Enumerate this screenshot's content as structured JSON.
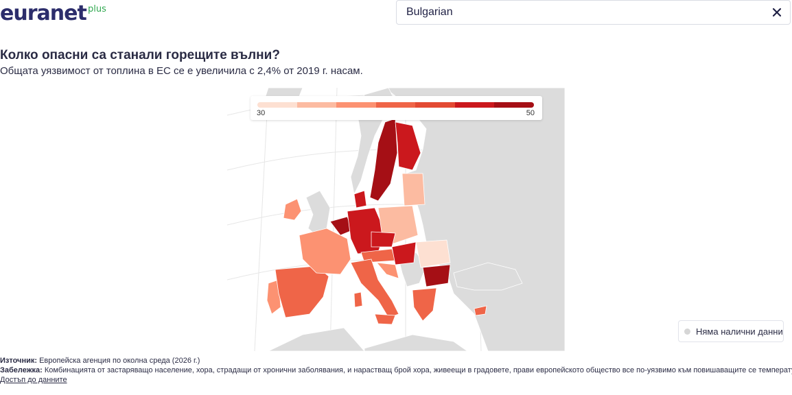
{
  "header": {
    "logo_text": "euranet",
    "logo_sup": "plus",
    "language_value": "Bulgarian"
  },
  "title": "Колко опасни са станали горещите вълни?",
  "subtitle": "Общата уязвимост от топлина в ЕС се е увеличила с 2,4% от 2019 г. насам.",
  "legend": {
    "min": "30",
    "max": "50",
    "colors": [
      "#fde0d2",
      "#fcbba1",
      "#fc9272",
      "#ef6548",
      "#e34a33",
      "#cb181d",
      "#a50f15"
    ]
  },
  "nodata_label": "Няма налични данни",
  "footer": {
    "source_label": "Източник:",
    "source_text": " Европейска агенция по околна среда (2026 г.)",
    "note_label": "Забележка:",
    "note_text": " Комбинацията от застаряващо население, хора, страдащи от хронични заболявания, и нарастващ брой хора, живеещи в градовете, прави европейското общество все по-уязвимо към повишаващите се температури.",
    "link_text": "Достъп до данните"
  },
  "colors": {
    "nodata": "#d9d9d9",
    "brand": "#2c2d6b",
    "brand_accent": "#2fa84f"
  }
}
